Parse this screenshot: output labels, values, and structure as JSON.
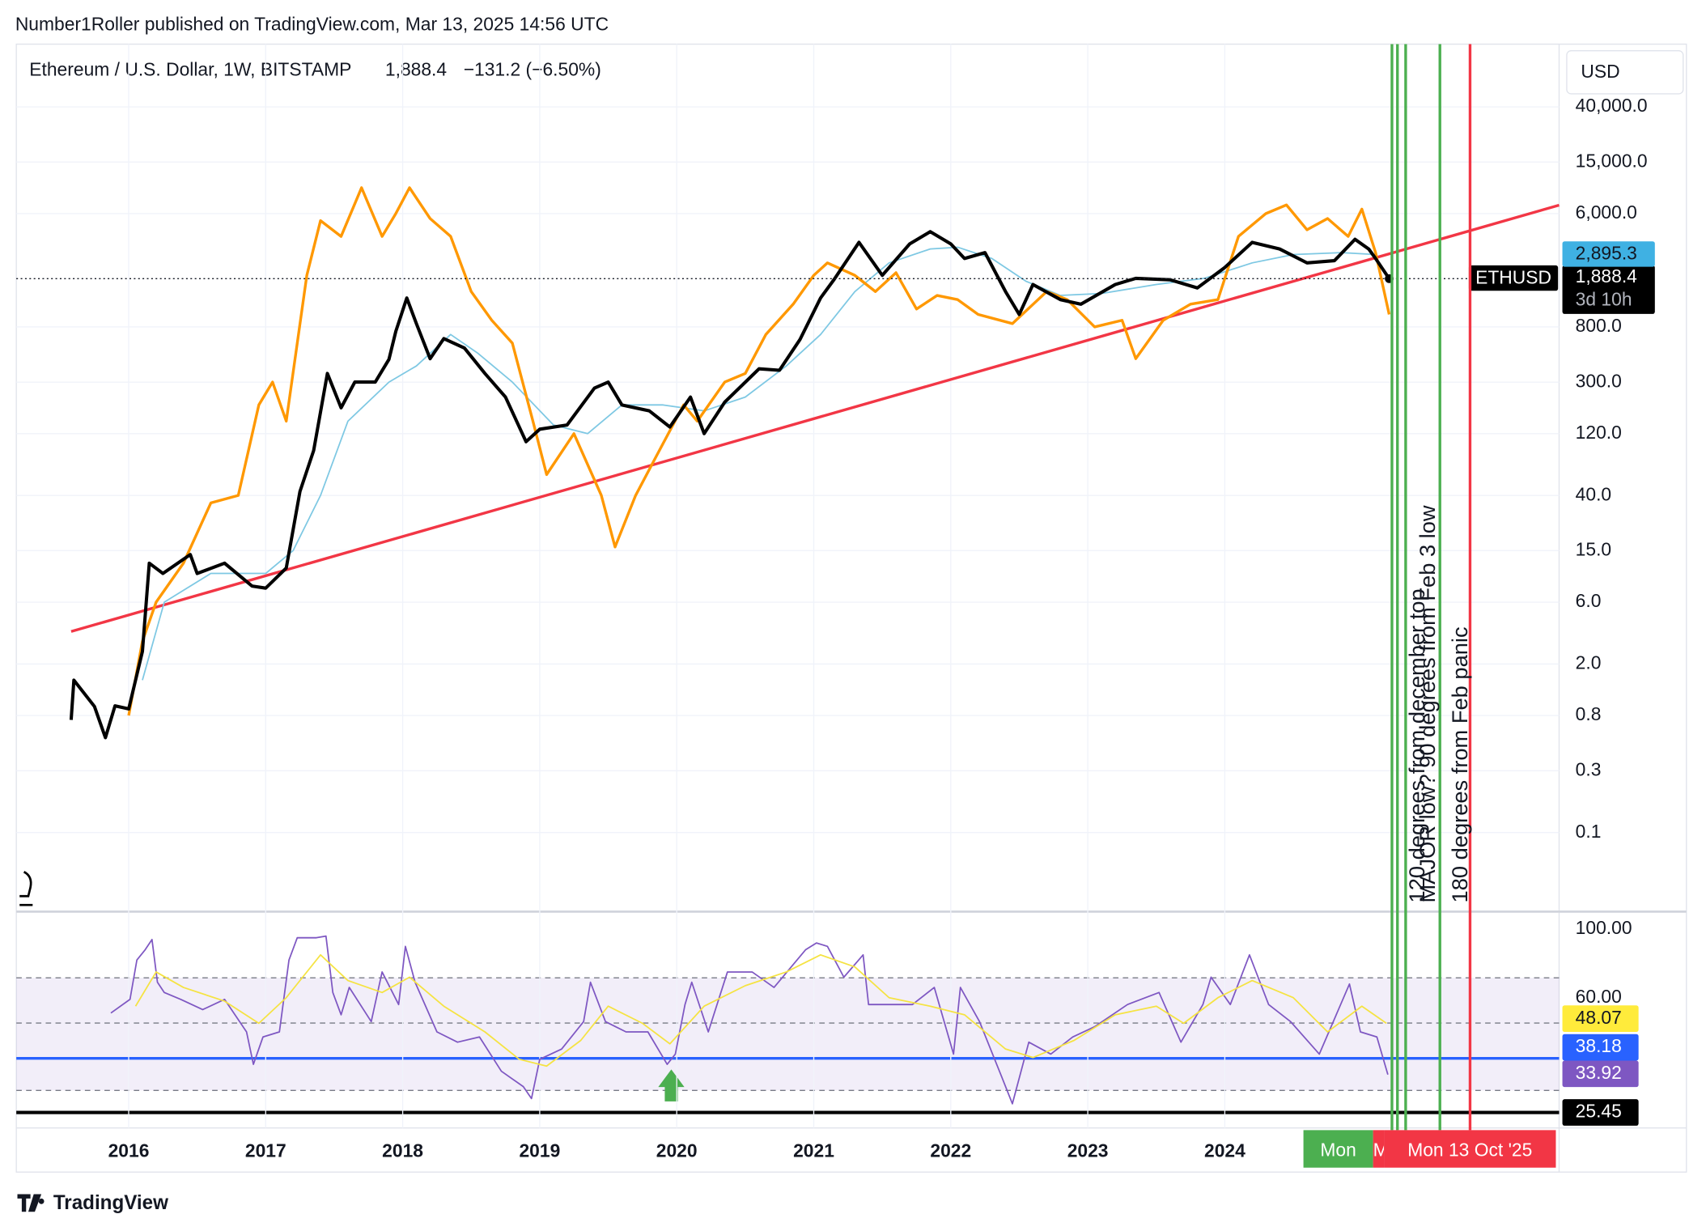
{
  "header": {
    "publisher": "Number1Roller published on TradingView.com, Mar 13, 2025 14:56 UTC"
  },
  "footer": {
    "brand": "TradingView"
  },
  "chart_data": [
    {
      "type": "line",
      "log_scale": true,
      "grid": true,
      "legend": {
        "symbol": "Ethereum / U.S. Dollar, 1W, BITSTAMP",
        "last": "1,888.4",
        "change": "−131.2 (−6.50%)"
      },
      "currency": "USD",
      "xlim": [
        2015.18,
        2026.44
      ],
      "ylim": [
        0.025,
        122000
      ],
      "xticks": [
        2016,
        2017,
        2018,
        2019,
        2020,
        2021,
        2022,
        2023,
        2024
      ],
      "yticks": [
        {
          "value": 40000,
          "label": "40,000.0"
        },
        {
          "value": 15000,
          "label": "15,000.0"
        },
        {
          "value": 6000,
          "label": "6,000.0"
        },
        {
          "value": 800,
          "label": "800.0"
        },
        {
          "value": 300,
          "label": "300.0"
        },
        {
          "value": 120,
          "label": "120.0"
        },
        {
          "value": 40,
          "label": "40.0"
        },
        {
          "value": 15,
          "label": "15.0"
        },
        {
          "value": 6,
          "label": "6.0"
        },
        {
          "value": 2,
          "label": "2.0"
        },
        {
          "value": 0.8,
          "label": "0.8"
        },
        {
          "value": 0.3,
          "label": "0.3"
        },
        {
          "value": 0.1,
          "label": "0.1"
        }
      ],
      "series": [
        {
          "color": "#f23645",
          "width": 2.5,
          "x": [
            2015.58,
            2026.44
          ],
          "values": [
            3.56,
            6970
          ]
        },
        {
          "color": "#7ec8e3",
          "width": 1.3,
          "x": [
            2016.1,
            2016.26,
            2016.6,
            2017.0,
            2017.2,
            2017.4,
            2017.6,
            2017.9,
            2018.1,
            2018.35,
            2018.55,
            2018.8,
            2019.1,
            2019.35,
            2019.6,
            2019.9,
            2020.2,
            2020.5,
            2020.8,
            2021.05,
            2021.3,
            2021.55,
            2021.85,
            2022.05,
            2022.3,
            2022.55,
            2022.8,
            2023.1,
            2023.5,
            2023.85,
            2024.2,
            2024.5,
            2024.85,
            2025.1
          ],
          "values": [
            1.5,
            6,
            10,
            10,
            15,
            40,
            150,
            300,
            400,
            700,
            500,
            300,
            140,
            120,
            200,
            200,
            180,
            230,
            400,
            700,
            1500,
            2500,
            3200,
            3300,
            2700,
            1800,
            1400,
            1450,
            1700,
            1900,
            2500,
            2900,
            3000,
            2900
          ]
        },
        {
          "color": "#ff9800",
          "width": 2.5,
          "x": [
            2016.0,
            2016.1,
            2016.2,
            2016.4,
            2016.6,
            2016.8,
            2016.95,
            2017.05,
            2017.15,
            2017.3,
            2017.4,
            2017.55,
            2017.7,
            2017.85,
            2017.95,
            2018.05,
            2018.2,
            2018.35,
            2018.5,
            2018.65,
            2018.8,
            2018.95,
            2019.05,
            2019.25,
            2019.45,
            2019.55,
            2019.7,
            2019.85,
            2020.05,
            2020.15,
            2020.35,
            2020.5,
            2020.65,
            2020.85,
            2021.0,
            2021.1,
            2021.3,
            2021.45,
            2021.6,
            2021.75,
            2021.9,
            2022.05,
            2022.2,
            2022.45,
            2022.7,
            2022.85,
            2023.05,
            2023.25,
            2023.35,
            2023.55,
            2023.75,
            2023.95,
            2024.1,
            2024.3,
            2024.45,
            2024.6,
            2024.75,
            2024.9,
            2025.0,
            2025.1,
            2025.2
          ],
          "values": [
            0.8,
            3,
            6,
            12,
            35,
            40,
            200,
            300,
            150,
            2000,
            5300,
            4000,
            9500,
            4000,
            6000,
            9500,
            5500,
            4000,
            1500,
            900,
            600,
            150,
            58,
            120,
            40,
            16,
            40,
            80,
            200,
            150,
            300,
            350,
            700,
            1200,
            2000,
            2500,
            2000,
            1500,
            2100,
            1100,
            1400,
            1300,
            1000,
            850,
            1500,
            1300,
            800,
            900,
            455,
            900,
            1200,
            1300,
            4000,
            6000,
            7000,
            4500,
            5500,
            4000,
            6500,
            3000,
            1000
          ]
        },
        {
          "name": "ETHUSD",
          "color": "#000000",
          "width": 3,
          "x": [
            2015.58,
            2015.6,
            2015.75,
            2015.83,
            2015.9,
            2016.0,
            2016.1,
            2016.15,
            2016.25,
            2016.45,
            2016.5,
            2016.7,
            2016.9,
            2017.0,
            2017.15,
            2017.25,
            2017.35,
            2017.45,
            2017.55,
            2017.65,
            2017.8,
            2017.9,
            2017.95,
            2018.03,
            2018.1,
            2018.2,
            2018.3,
            2018.45,
            2018.6,
            2018.75,
            2018.9,
            2019.0,
            2019.2,
            2019.4,
            2019.5,
            2019.6,
            2019.8,
            2019.95,
            2020.1,
            2020.2,
            2020.35,
            2020.6,
            2020.75,
            2020.9,
            2021.05,
            2021.15,
            2021.33,
            2021.5,
            2021.7,
            2021.85,
            2022.0,
            2022.1,
            2022.25,
            2022.4,
            2022.5,
            2022.6,
            2022.8,
            2022.95,
            2023.2,
            2023.35,
            2023.6,
            2023.8,
            2024.0,
            2024.2,
            2024.4,
            2024.6,
            2024.8,
            2024.95,
            2025.05,
            2025.1,
            2025.2
          ],
          "values": [
            0.74,
            1.5,
            0.94,
            0.54,
            0.95,
            0.9,
            2.5,
            12,
            10,
            14,
            10,
            12,
            8,
            7.7,
            11,
            43,
            89,
            350,
            190,
            300,
            300,
            450,
            740,
            1340,
            850,
            455,
            650,
            550,
            350,
            230,
            104,
            130,
            140,
            270,
            300,
            200,
            180,
            135,
            230,
            120,
            210,
            380,
            370,
            640,
            1340,
            1870,
            3600,
            2000,
            3500,
            4350,
            3500,
            2700,
            3000,
            1500,
            1000,
            1700,
            1300,
            1200,
            1700,
            1900,
            1850,
            1600,
            2300,
            3600,
            3200,
            2500,
            2600,
            3800,
            3200,
            2700,
            1888.4
          ]
        }
      ],
      "last_price": {
        "value": 1888.4,
        "label": "1,888.4"
      },
      "countdown": "3d 10h",
      "ma_price": {
        "value": 2895.3,
        "label": "2,895.3"
      },
      "vlines": [
        {
          "x": 2025.22,
          "color": "#4caf50"
        },
        {
          "x": 2025.26,
          "color": "#4caf50"
        },
        {
          "x": 2025.32,
          "color": "#4caf50",
          "label": "120 degrees from december top"
        },
        {
          "x": 2025.57,
          "color": "#4caf50",
          "label": "MAJOR low? 90 degrees from Feb 3 low"
        },
        {
          "x": 2025.79,
          "color": "#f23645",
          "label": "180 degrees from Feb panic"
        }
      ],
      "x_markers": [
        "Mon",
        "M",
        "Mon 13 Oct '25"
      ]
    },
    {
      "type": "line",
      "xlim": [
        2015.18,
        2026.44
      ],
      "ylim": [
        -8.4,
        109
      ],
      "yticks": [
        {
          "value": 100,
          "label": "100.00"
        },
        {
          "value": 60,
          "label": "60.00"
        }
      ],
      "series": [
        {
          "color": "#7e57c2",
          "width": 1.3,
          "x": [
            2015.87,
            2016.01,
            2016.06,
            2016.12,
            2016.17,
            2016.21,
            2016.26,
            2016.38,
            2016.54,
            2016.7,
            2016.86,
            2016.91,
            2016.98,
            2017.1,
            2017.17,
            2017.23,
            2017.37,
            2017.44,
            2017.49,
            2017.55,
            2017.61,
            2017.77,
            2017.85,
            2017.97,
            2018.02,
            2018.09,
            2018.25,
            2018.4,
            2018.56,
            2018.72,
            2018.88,
            2018.94,
            2019.0,
            2019.16,
            2019.32,
            2019.37,
            2019.48,
            2019.63,
            2019.79,
            2019.93,
            2019.99,
            2020.06,
            2020.11,
            2020.23,
            2020.37,
            2020.55,
            2020.71,
            2020.94,
            2021.02,
            2021.1,
            2021.22,
            2021.36,
            2021.4,
            2021.56,
            2021.72,
            2021.88,
            2022.02,
            2022.07,
            2022.21,
            2022.37,
            2022.45,
            2022.57,
            2022.73,
            2022.89,
            2023.05,
            2023.29,
            2023.52,
            2023.68,
            2023.84,
            2023.9,
            2024.04,
            2024.18,
            2024.32,
            2024.48,
            2024.69,
            2024.91,
            2024.99,
            2025.11,
            2025.19
          ],
          "values": [
            51,
            59,
            82,
            88,
            94,
            69,
            63,
            59,
            53,
            59,
            40,
            21,
            37,
            40,
            82,
            95,
            95,
            96,
            63,
            50,
            66,
            46,
            75,
            56,
            90,
            69,
            40,
            34,
            37,
            17,
            8,
            1,
            24,
            30,
            46,
            69,
            46,
            40,
            40,
            21,
            27,
            56,
            69,
            40,
            75,
            75,
            66,
            88,
            92,
            90,
            72,
            85,
            56,
            56,
            56,
            66,
            27,
            66,
            46,
            14,
            -2,
            34,
            27,
            37,
            43,
            56,
            63,
            34,
            56,
            72,
            56,
            85,
            56,
            46,
            27,
            68,
            40,
            37,
            15
          ]
        },
        {
          "color": "#f5e342",
          "width": 1.3,
          "x": [
            2016.05,
            2016.2,
            2016.4,
            2016.7,
            2016.95,
            2017.15,
            2017.4,
            2017.6,
            2017.85,
            2018.05,
            2018.3,
            2018.6,
            2018.85,
            2019.05,
            2019.3,
            2019.5,
            2019.75,
            2019.95,
            2020.2,
            2020.5,
            2020.8,
            2021.05,
            2021.3,
            2021.55,
            2021.85,
            2022.1,
            2022.4,
            2022.6,
            2022.9,
            2023.2,
            2023.5,
            2023.7,
            2023.95,
            2024.2,
            2024.5,
            2024.75,
            2025.0,
            2025.18
          ],
          "values": [
            55,
            75,
            66,
            58,
            45,
            60,
            85,
            70,
            63,
            72,
            55,
            40,
            24,
            20,
            35,
            55,
            45,
            33,
            55,
            67,
            75,
            85,
            78,
            60,
            55,
            50,
            30,
            25,
            35,
            50,
            55,
            45,
            60,
            70,
            60,
            40,
            55,
            45
          ]
        }
      ],
      "value_tags": [
        "48.07",
        "38.18",
        "33.92",
        "25.45"
      ]
    }
  ]
}
